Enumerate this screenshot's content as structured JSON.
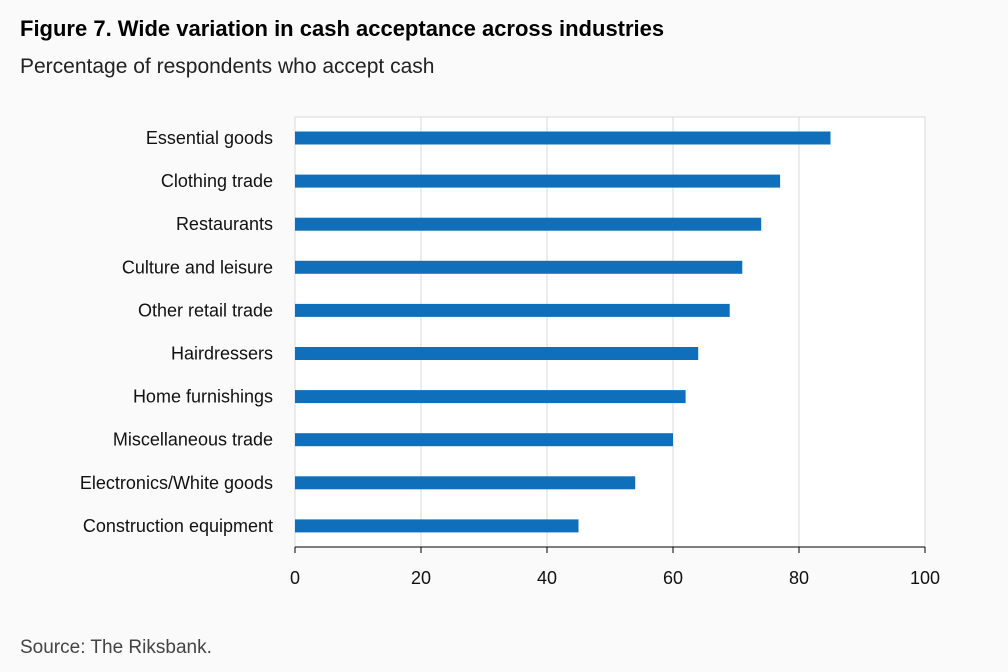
{
  "figure": {
    "title": "Figure 7. Wide variation in cash acceptance across industries",
    "subtitle": "Percentage of respondents who accept cash",
    "source": "Source: The Riksbank."
  },
  "chart_data": {
    "type": "bar",
    "orientation": "horizontal",
    "title": "Figure 7. Wide variation in cash acceptance across industries",
    "subtitle": "Percentage of respondents who accept cash",
    "xlabel": "",
    "ylabel": "",
    "categories": [
      "Essential goods",
      "Clothing trade",
      "Restaurants",
      "Culture and leisure",
      "Other retail trade",
      "Hairdressers",
      "Home furnishings",
      "Miscellaneous trade",
      "Electronics/White goods",
      "Construction equipment"
    ],
    "values": [
      85,
      77,
      74,
      71,
      69,
      64,
      62,
      60,
      54,
      45
    ],
    "xlim": [
      0,
      100
    ],
    "xticks": [
      0,
      20,
      40,
      60,
      80,
      100
    ],
    "grid": true,
    "bar_color": "#0f6fba",
    "grid_color": "#d9d9d9"
  }
}
